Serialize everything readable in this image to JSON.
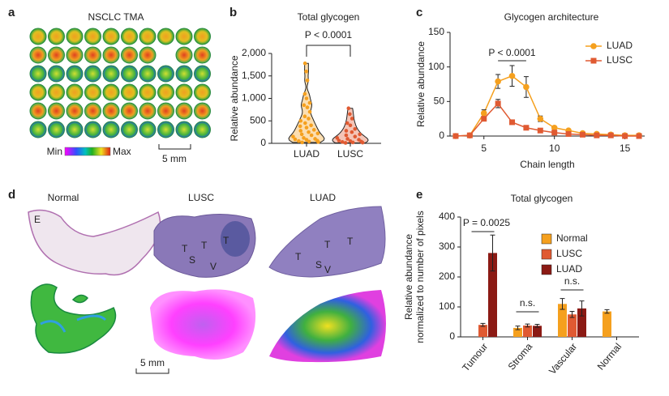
{
  "figure": {
    "panel_labels": [
      "a",
      "b",
      "c",
      "d",
      "e"
    ],
    "panel_a": {
      "title": "NSCLC TMA",
      "colorbar_min": "Min",
      "colorbar_max": "Max",
      "scale": "5 mm"
    },
    "panel_d": {
      "columns": [
        "Normal",
        "LUSC",
        "LUAD"
      ],
      "normal_regions": [
        "E"
      ],
      "lusc_regions": [
        "T",
        "T",
        "T",
        "S",
        "V"
      ],
      "luad_regions": [
        "T",
        "T",
        "T",
        "S",
        "V"
      ],
      "scale": "5 mm"
    }
  },
  "chart_data": [
    {
      "type": "violin",
      "title": "Total glycogen",
      "ylabel": "Relative abundance",
      "categories": [
        "LUAD",
        "LUSC"
      ],
      "colors": [
        "#f5a01e",
        "#e05a32"
      ],
      "values": [
        [
          1780,
          1600,
          1400,
          1100,
          1000,
          900,
          850,
          800,
          700,
          600,
          550,
          500,
          450,
          400,
          380,
          350,
          300,
          280,
          250,
          220,
          200,
          180,
          150,
          120,
          100,
          90,
          80,
          60,
          50,
          40,
          30,
          20
        ],
        [
          780,
          650,
          550,
          450,
          400,
          320,
          280,
          250,
          200,
          180,
          150,
          120,
          100,
          80,
          60,
          50,
          40,
          30,
          20,
          15,
          10
        ]
      ],
      "ylim": [
        0,
        2000
      ],
      "yticks": [
        0,
        500,
        {
          "value": 1000,
          "label": "1,000"
        },
        {
          "value": 1500,
          "label": "1,500"
        },
        {
          "value": 2000,
          "label": "2,000"
        }
      ],
      "annotation": "P < 0.0001"
    },
    {
      "type": "line",
      "title": "Glycogen architecture",
      "xlabel": "Chain length",
      "ylabel": "Relative abundance",
      "x": [
        3,
        4,
        5,
        6,
        7,
        8,
        9,
        10,
        11,
        12,
        13,
        14,
        15,
        16
      ],
      "series": [
        {
          "name": "LUAD",
          "color": "#f5a01e",
          "marker": "circle",
          "values": [
            0,
            1,
            33,
            79,
            87,
            71,
            25,
            12,
            8,
            4,
            3,
            2,
            1,
            1
          ],
          "errors": [
            null,
            null,
            5,
            10,
            15,
            15,
            4,
            null,
            null,
            null,
            null,
            null,
            null,
            null
          ]
        },
        {
          "name": "LUSC",
          "color": "#e05a32",
          "marker": "square",
          "values": [
            0,
            1,
            25,
            47,
            20,
            12,
            8,
            5,
            3,
            2,
            1,
            1,
            0,
            0
          ],
          "errors": [
            null,
            null,
            3,
            6,
            null,
            null,
            null,
            null,
            null,
            null,
            null,
            null,
            null,
            null
          ]
        }
      ],
      "xlim": [
        2.6,
        16.4
      ],
      "xticks": [
        5,
        10,
        15
      ],
      "ylim": [
        0,
        150
      ],
      "yticks": [
        0,
        50,
        100,
        150
      ],
      "annotation": "P < 0.0001"
    },
    {
      "type": "bar",
      "title": "Total glycogen",
      "ylabel": [
        "Relative abundance",
        "normalized to number of pixels"
      ],
      "categories": [
        "Tumour",
        "Stroma",
        "Vascular",
        "Normal"
      ],
      "series": [
        {
          "name": "Normal",
          "color": "#f5a01e",
          "values": [
            null,
            30,
            110,
            85
          ],
          "errors": [
            null,
            6,
            18,
            6
          ]
        },
        {
          "name": "LUSC",
          "color": "#e05a32",
          "values": [
            40,
            38,
            75,
            null
          ],
          "errors": [
            5,
            5,
            10,
            null
          ]
        },
        {
          "name": "LUAD",
          "color": "#8b1a14",
          "values": [
            280,
            37,
            95,
            null
          ],
          "errors": [
            60,
            5,
            25,
            null
          ]
        }
      ],
      "ylim": [
        0,
        400
      ],
      "yticks": [
        0,
        100,
        200,
        300,
        400
      ],
      "annotations": [
        "P = 0.0025",
        "n.s.",
        "n.s."
      ]
    }
  ]
}
